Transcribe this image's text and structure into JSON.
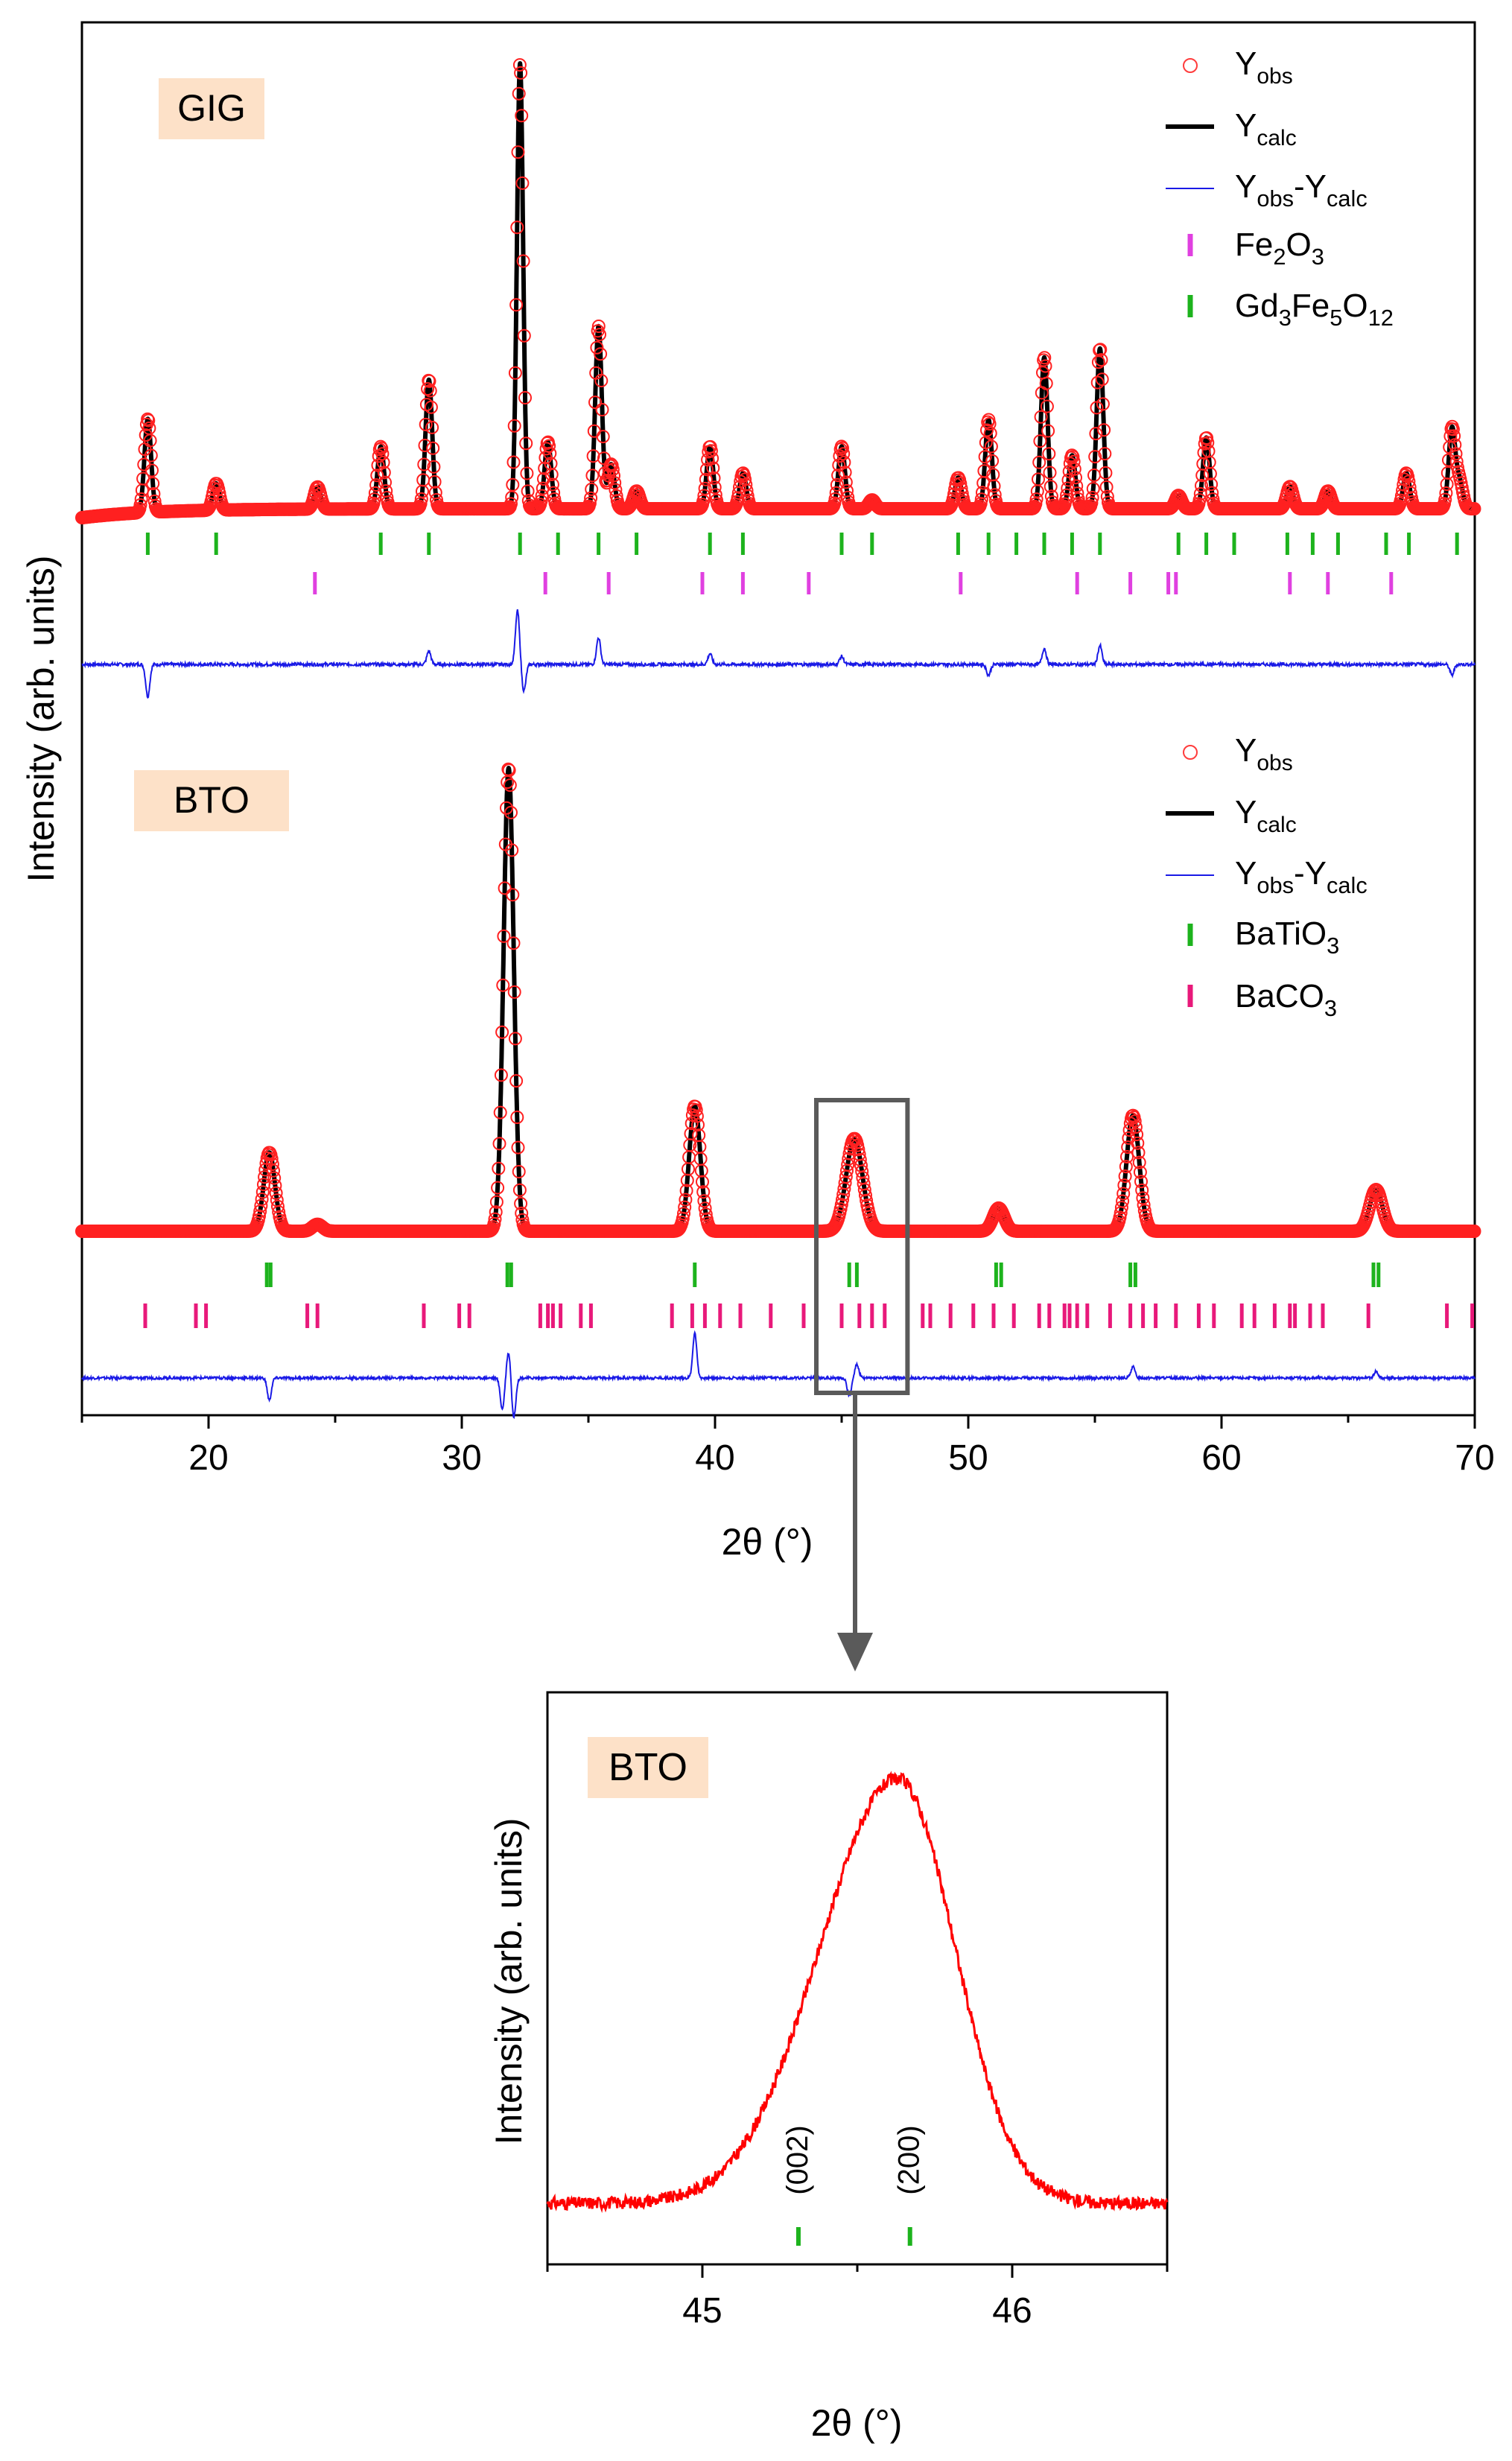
{
  "chart_data": [
    {
      "id": "main",
      "type": "line",
      "xlabel": "2θ (°)",
      "ylabel": "Intensity (arb. units)",
      "xlim": [
        15,
        70
      ],
      "xticks": [
        20,
        30,
        40,
        50,
        60,
        70
      ],
      "panels": [
        {
          "id": "gig",
          "sample_label": "GIG",
          "legend": {
            "obs": {
              "base": "Y",
              "sub": "obs"
            },
            "calc": {
              "base": "Y",
              "sub": "calc"
            },
            "diff": [
              {
                "t": "Y",
                "sub": false
              },
              {
                "t": "obs",
                "sub": true
              },
              {
                "t": "-Y",
                "sub": false
              },
              {
                "t": "calc",
                "sub": true
              }
            ],
            "phase1": {
              "color": "#e040e0",
              "parts": [
                {
                  "t": "Fe",
                  "sub": false
                },
                {
                  "t": "2",
                  "sub": true
                },
                {
                  "t": "O",
                  "sub": false
                },
                {
                  "t": "3",
                  "sub": true
                }
              ]
            },
            "phase2": {
              "color": "#1db31d",
              "parts": [
                {
                  "t": "Gd",
                  "sub": false
                },
                {
                  "t": "3",
                  "sub": true
                },
                {
                  "t": "Fe",
                  "sub": false
                },
                {
                  "t": "5",
                  "sub": true
                },
                {
                  "t": "O",
                  "sub": false
                },
                {
                  "t": "12",
                  "sub": true
                }
              ]
            }
          },
          "background": 0.02,
          "peaks": [
            {
              "x": 17.6,
              "h": 0.21,
              "w": 0.13
            },
            {
              "x": 20.3,
              "h": 0.06,
              "w": 0.13
            },
            {
              "x": 24.3,
              "h": 0.05,
              "w": 0.13
            },
            {
              "x": 26.8,
              "h": 0.14,
              "w": 0.13
            },
            {
              "x": 28.7,
              "h": 0.29,
              "w": 0.13
            },
            {
              "x": 32.3,
              "h": 1.0,
              "w": 0.12
            },
            {
              "x": 33.4,
              "h": 0.15,
              "w": 0.13
            },
            {
              "x": 35.4,
              "h": 0.41,
              "w": 0.13
            },
            {
              "x": 35.9,
              "h": 0.1,
              "w": 0.13
            },
            {
              "x": 36.9,
              "h": 0.04,
              "w": 0.13
            },
            {
              "x": 39.8,
              "h": 0.14,
              "w": 0.13
            },
            {
              "x": 41.1,
              "h": 0.08,
              "w": 0.13
            },
            {
              "x": 45.0,
              "h": 0.14,
              "w": 0.13
            },
            {
              "x": 46.2,
              "h": 0.02,
              "w": 0.13
            },
            {
              "x": 49.6,
              "h": 0.07,
              "w": 0.13
            },
            {
              "x": 50.8,
              "h": 0.2,
              "w": 0.13
            },
            {
              "x": 53.0,
              "h": 0.34,
              "w": 0.13
            },
            {
              "x": 54.1,
              "h": 0.12,
              "w": 0.13
            },
            {
              "x": 55.2,
              "h": 0.36,
              "w": 0.13
            },
            {
              "x": 58.3,
              "h": 0.03,
              "w": 0.13
            },
            {
              "x": 59.4,
              "h": 0.16,
              "w": 0.13
            },
            {
              "x": 62.7,
              "h": 0.05,
              "w": 0.13
            },
            {
              "x": 64.2,
              "h": 0.04,
              "w": 0.13
            },
            {
              "x": 67.3,
              "h": 0.08,
              "w": 0.13
            },
            {
              "x": 69.1,
              "h": 0.18,
              "w": 0.13
            },
            {
              "x": 69.4,
              "h": 0.06,
              "w": 0.13
            }
          ],
          "ticks_phase2": [
            17.6,
            20.3,
            26.8,
            28.7,
            32.3,
            33.8,
            35.4,
            36.9,
            39.8,
            41.1,
            45.0,
            46.2,
            49.6,
            50.8,
            51.9,
            53.0,
            54.1,
            55.2,
            58.3,
            59.4,
            60.5,
            62.6,
            63.6,
            64.6,
            66.5,
            67.4,
            69.3
          ],
          "ticks_phase1": [
            24.2,
            33.3,
            35.8,
            39.5,
            41.1,
            43.7,
            49.7,
            54.3,
            56.4,
            57.9,
            58.2,
            62.7,
            64.2,
            66.7
          ],
          "diff_features": [
            {
              "x": 17.6,
              "a": -0.6
            },
            {
              "x": 28.7,
              "a": 0.25
            },
            {
              "x": 32.2,
              "a": 1.0
            },
            {
              "x": 32.45,
              "a": -0.5
            },
            {
              "x": 35.4,
              "a": 0.5
            },
            {
              "x": 39.8,
              "a": 0.2
            },
            {
              "x": 45.0,
              "a": 0.15
            },
            {
              "x": 50.8,
              "a": -0.2
            },
            {
              "x": 53.0,
              "a": 0.3
            },
            {
              "x": 55.2,
              "a": 0.35
            },
            {
              "x": 69.1,
              "a": -0.2
            }
          ]
        },
        {
          "id": "bto",
          "sample_label": "BTO",
          "legend": {
            "obs": {
              "base": "Y",
              "sub": "obs"
            },
            "calc": {
              "base": "Y",
              "sub": "calc"
            },
            "diff": [
              {
                "t": "Y",
                "sub": false
              },
              {
                "t": "obs",
                "sub": true
              },
              {
                "t": "-Y",
                "sub": false
              },
              {
                "t": "calc",
                "sub": true
              }
            ],
            "phase1": {
              "color": "#1db31d",
              "parts": [
                {
                  "t": "BaTiO",
                  "sub": false
                },
                {
                  "t": "3",
                  "sub": true
                }
              ]
            },
            "phase2": {
              "color": "#e8197a",
              "parts": [
                {
                  "t": "BaCO",
                  "sub": false
                },
                {
                  "t": "3",
                  "sub": true
                }
              ]
            }
          },
          "background": 0.0,
          "peaks": [
            {
              "x": 22.4,
              "h": 0.17,
              "w": 0.22
            },
            {
              "x": 24.3,
              "h": 0.015,
              "w": 0.2
            },
            {
              "x": 31.85,
              "h": 1.0,
              "w": 0.2
            },
            {
              "x": 39.2,
              "h": 0.27,
              "w": 0.22
            },
            {
              "x": 45.5,
              "h": 0.2,
              "w": 0.32
            },
            {
              "x": 51.2,
              "h": 0.05,
              "w": 0.22
            },
            {
              "x": 56.5,
              "h": 0.25,
              "w": 0.25
            },
            {
              "x": 66.1,
              "h": 0.09,
              "w": 0.25
            }
          ],
          "ticks_phase1": [
            22.3,
            22.45,
            31.8,
            31.95,
            39.2,
            45.3,
            45.6,
            51.1,
            51.3,
            56.4,
            56.6,
            66.0,
            66.2
          ],
          "ticks_phase2": [
            17.5,
            19.5,
            19.9,
            23.9,
            24.3,
            28.5,
            29.9,
            30.3,
            33.1,
            33.4,
            33.6,
            33.9,
            34.7,
            35.1,
            38.3,
            39.1,
            39.6,
            40.2,
            41.0,
            42.2,
            43.5,
            45.0,
            45.7,
            46.2,
            46.7,
            47.6,
            48.2,
            48.5,
            49.3,
            50.2,
            51.0,
            51.8,
            52.8,
            53.2,
            53.8,
            54.0,
            54.3,
            54.7,
            55.6,
            56.4,
            56.9,
            57.4,
            58.2,
            59.1,
            59.7,
            60.8,
            61.3,
            62.1,
            62.7,
            62.9,
            63.5,
            64.0,
            65.8,
            68.9,
            69.9
          ],
          "diff_features": [
            {
              "x": 22.4,
              "a": -0.5
            },
            {
              "x": 31.6,
              "a": -0.7
            },
            {
              "x": 31.85,
              "a": 0.6
            },
            {
              "x": 32.05,
              "a": -0.9
            },
            {
              "x": 39.2,
              "a": 1.0
            },
            {
              "x": 45.3,
              "a": -0.4
            },
            {
              "x": 45.6,
              "a": 0.3
            },
            {
              "x": 56.5,
              "a": 0.25
            },
            {
              "x": 66.1,
              "a": 0.15
            }
          ]
        }
      ],
      "zoom_box": {
        "x0": 44.0,
        "x1": 47.6
      }
    },
    {
      "id": "inset",
      "type": "line",
      "sample_label": "BTO",
      "xlabel": "2θ (°)",
      "ylabel": "Intensity (arb. units)",
      "xlim": [
        44.5,
        46.5
      ],
      "xticks": [
        45,
        46
      ],
      "minor_ticks": [
        44.5,
        45.5,
        46.5
      ],
      "series": [
        {
          "name": "BTO",
          "color": "#ff0000",
          "peak_center": 45.63,
          "peak_height": 1.0,
          "background": 0.0
        }
      ],
      "reflections": [
        {
          "label": "(002)",
          "x": 45.31
        },
        {
          "label": "(200)",
          "x": 45.67
        }
      ]
    }
  ]
}
